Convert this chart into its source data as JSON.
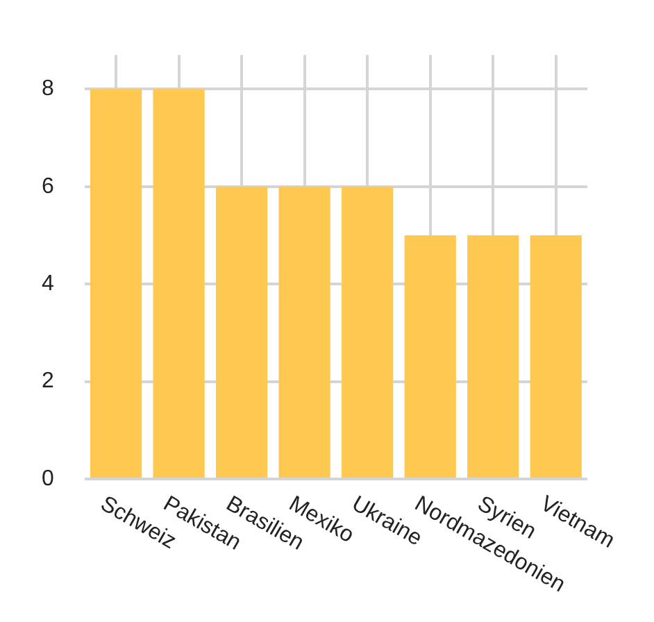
{
  "chart_data": {
    "type": "bar",
    "categories": [
      "Schweiz",
      "Pakistan",
      "Brasilien",
      "Mexiko",
      "Ukraine",
      "Nordmazedonien",
      "Syrien",
      "Vietnam"
    ],
    "values": [
      8,
      8,
      6,
      6,
      6,
      5,
      5,
      5
    ],
    "color": "#ffc850",
    "ylim": [
      0,
      8.7
    ],
    "yticks": [
      0,
      2,
      4,
      6,
      8
    ],
    "grid": true
  }
}
